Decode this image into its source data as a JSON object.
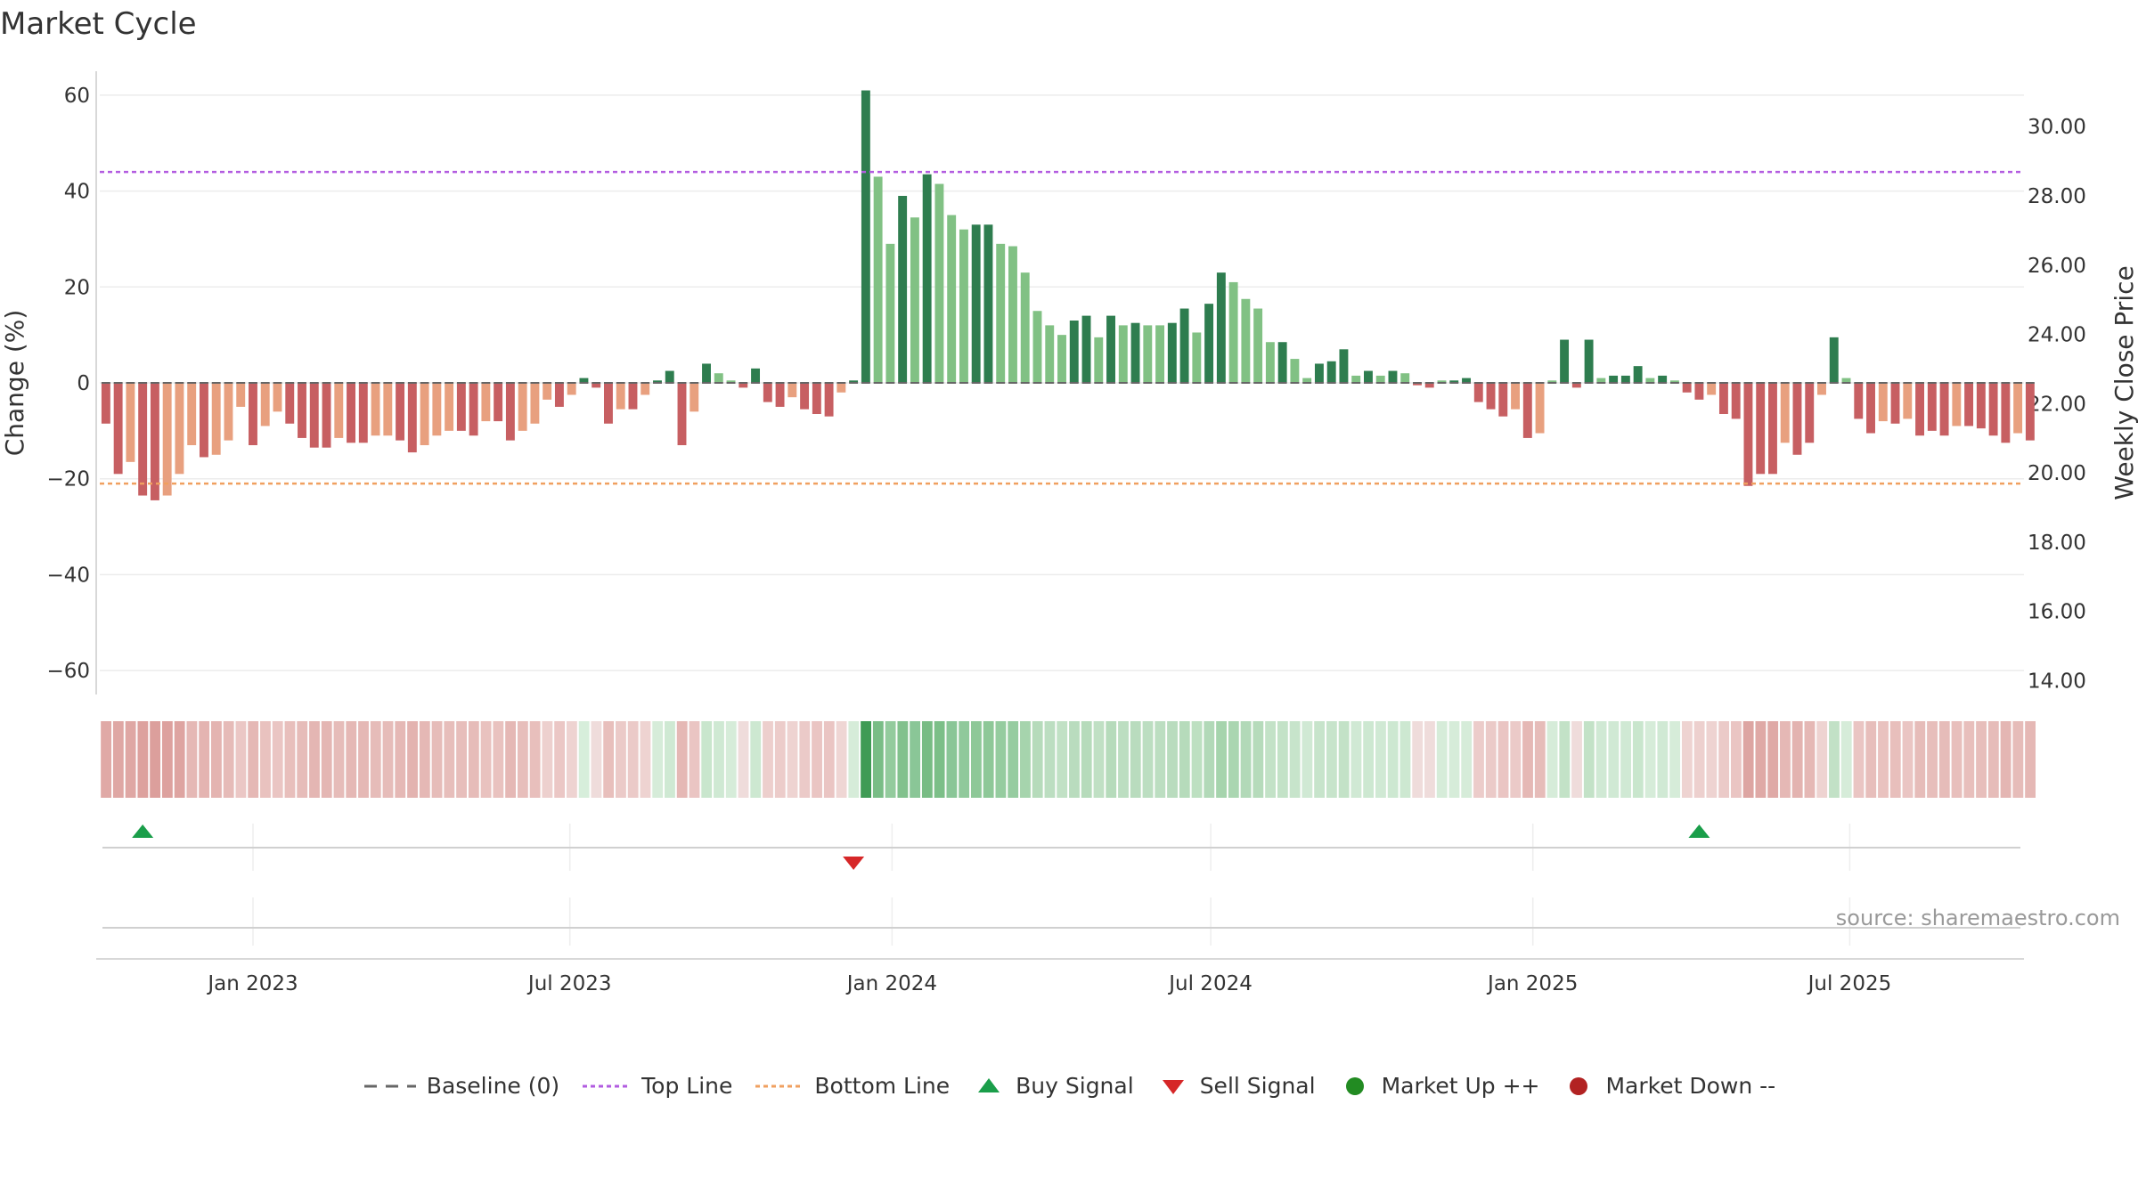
{
  "title": "Market Cycle",
  "source": "source: sharemaestro.com",
  "chart_data": {
    "type": "bar",
    "title": "Market Cycle",
    "ylabel_left": "Change (%)",
    "ylabel_right": "Weekly Close Price",
    "ylim_left": [
      -65,
      65
    ],
    "ylim_right": [
      13.6,
      31.6
    ],
    "yticks_left": [
      60,
      40,
      20,
      0,
      -20,
      -40,
      -60
    ],
    "yticks_left_labels": [
      "60",
      "40",
      "20",
      "0",
      "−20",
      "−40",
      "−60"
    ],
    "yticks_right": [
      30,
      28,
      26,
      24,
      22,
      20,
      18,
      16,
      14
    ],
    "yticks_right_labels": [
      "30.00",
      "28.00",
      "26.00",
      "24.00",
      "22.00",
      "20.00",
      "18.00",
      "16.00",
      "14.00"
    ],
    "start_date": "2022-10-09",
    "weeks": 157,
    "xticks": [
      {
        "label": "Jan 2023",
        "date": "2023-01-01"
      },
      {
        "label": "Jul 2023",
        "date": "2023-07-01"
      },
      {
        "label": "Jan 2024",
        "date": "2024-01-01"
      },
      {
        "label": "Jul 2024",
        "date": "2024-07-01"
      },
      {
        "label": "Jan 2025",
        "date": "2025-01-01"
      },
      {
        "label": "Jul 2025",
        "date": "2025-07-01"
      }
    ],
    "top_line": 44,
    "bottom_line": -21,
    "values": [
      -8.5,
      -19,
      -16.5,
      -23.5,
      -24.5,
      -23.5,
      -19,
      -13,
      -15.5,
      -15,
      -12,
      -5,
      -13,
      -9,
      -6,
      -8.5,
      -11.5,
      -13.5,
      -13.5,
      -11.5,
      -12.5,
      -12.5,
      -11,
      -11,
      -12,
      -14.5,
      -13,
      -11,
      -10,
      -10,
      -11,
      -8,
      -8,
      -12,
      -10,
      -8.5,
      -3.5,
      -5,
      -2.5,
      1,
      -1,
      -8.5,
      -5.5,
      -5.5,
      -2.5,
      0.5,
      2.5,
      -13,
      -6,
      4,
      2,
      0.5,
      -1,
      3,
      -4,
      -5,
      -3,
      -5.5,
      -6.5,
      -7,
      -2,
      0.5,
      61,
      43,
      29,
      39,
      34.5,
      43.5,
      41.5,
      35,
      32,
      33,
      33,
      29,
      28.5,
      23,
      15,
      12,
      10,
      13,
      14,
      9.5,
      14,
      12,
      12.5,
      12,
      12,
      12.5,
      15.5,
      10.5,
      16.5,
      23,
      21,
      17.5,
      15.5,
      8.5,
      8.5,
      5,
      1,
      4,
      4.5,
      7,
      1.5,
      2.5,
      1.5,
      2.5,
      2,
      -0.5,
      -1,
      0.5,
      0.5,
      1,
      -4,
      -5.5,
      -7,
      -5.5,
      -11.5,
      -10.5,
      0.5,
      9,
      -1,
      9,
      1,
      1.5,
      1.5,
      3.5,
      1,
      1.5,
      0.5,
      -2,
      -3.5,
      -2.5,
      -6.5,
      -7.5,
      -21.5,
      -19,
      -19,
      -12.5,
      -15,
      -12.5,
      -2.5,
      9.5,
      1,
      -7.5,
      -10.5,
      -8,
      -8.5,
      -7.5,
      -11,
      -10,
      -11,
      -9,
      -9,
      -9.5,
      -11,
      -12.5,
      -10.5,
      -12
    ],
    "bar_colors": [
      "#c75f62",
      "#c75f62",
      "#e8a07f",
      "#c75f62",
      "#c75f62",
      "#e8a07f",
      "#e8a07f",
      "#e8a07f",
      "#c75f62",
      "#e8a07f",
      "#e8a07f",
      "#e8a07f",
      "#c75f62",
      "#e8a07f",
      "#e8a07f",
      "#c75f62",
      "#c75f62",
      "#c75f62",
      "#c75f62",
      "#e8a07f",
      "#c75f62",
      "#c75f62",
      "#e8a07f",
      "#e8a07f",
      "#c75f62",
      "#c75f62",
      "#e8a07f",
      "#e8a07f",
      "#e8a07f",
      "#c75f62",
      "#c75f62",
      "#e8a07f",
      "#c75f62",
      "#c75f62",
      "#e8a07f",
      "#e8a07f",
      "#e8a07f",
      "#c75f62",
      "#e8a07f",
      "#2e7d4f",
      "#c75f62",
      "#c75f62",
      "#e8a07f",
      "#c75f62",
      "#e8a07f",
      "#2e7d4f",
      "#2e7d4f",
      "#c75f62",
      "#e8a07f",
      "#2e7d4f",
      "#81c184",
      "#81c184",
      "#c75f62",
      "#2e7d4f",
      "#c75f62",
      "#c75f62",
      "#e8a07f",
      "#c75f62",
      "#c75f62",
      "#c75f62",
      "#e8a07f",
      "#2e7d4f",
      "#2e7d4f",
      "#81c184",
      "#81c184",
      "#2e7d4f",
      "#81c184",
      "#2e7d4f",
      "#81c184",
      "#81c184",
      "#81c184",
      "#2e7d4f",
      "#2e7d4f",
      "#81c184",
      "#81c184",
      "#81c184",
      "#81c184",
      "#81c184",
      "#81c184",
      "#2e7d4f",
      "#2e7d4f",
      "#81c184",
      "#2e7d4f",
      "#81c184",
      "#2e7d4f",
      "#81c184",
      "#81c184",
      "#2e7d4f",
      "#2e7d4f",
      "#81c184",
      "#2e7d4f",
      "#2e7d4f",
      "#81c184",
      "#81c184",
      "#81c184",
      "#81c184",
      "#2e7d4f",
      "#81c184",
      "#81c184",
      "#2e7d4f",
      "#2e7d4f",
      "#2e7d4f",
      "#81c184",
      "#2e7d4f",
      "#81c184",
      "#2e7d4f",
      "#81c184",
      "#c75f62",
      "#c75f62",
      "#81c184",
      "#2e7d4f",
      "#2e7d4f",
      "#c75f62",
      "#c75f62",
      "#c75f62",
      "#e8a07f",
      "#c75f62",
      "#e8a07f",
      "#81c184",
      "#2e7d4f",
      "#c75f62",
      "#2e7d4f",
      "#81c184",
      "#2e7d4f",
      "#2e7d4f",
      "#2e7d4f",
      "#81c184",
      "#2e7d4f",
      "#81c184",
      "#c75f62",
      "#c75f62",
      "#e8a07f",
      "#c75f62",
      "#c75f62",
      "#c75f62",
      "#c75f62",
      "#c75f62",
      "#e8a07f",
      "#c75f62",
      "#c75f62",
      "#e8a07f",
      "#2e7d4f",
      "#81c184",
      "#c75f62",
      "#c75f62",
      "#e8a07f",
      "#c75f62",
      "#e8a07f",
      "#c75f62",
      "#c75f62",
      "#c75f62",
      "#e8a07f",
      "#c75f62",
      "#c75f62",
      "#c75f62",
      "#c75f62",
      "#e8a07f",
      "#c75f62"
    ],
    "heatmap_colors": [
      "#e0a9a6",
      "#dfa7a4",
      "#dfa7a4",
      "#dda19e",
      "#dc9f9c",
      "#dda19e",
      "#dea4a1",
      "#e5b8b5",
      "#e4b4b1",
      "#e4b4b1",
      "#e6bbb8",
      "#ebc7c5",
      "#e5b8b5",
      "#e9c2bf",
      "#eac5c3",
      "#e8bfbc",
      "#e6bcb9",
      "#e4b6b3",
      "#e4b6b3",
      "#e6bcb9",
      "#e5b8b5",
      "#e5b8b5",
      "#e6bcb9",
      "#e6bcb9",
      "#e5b8b5",
      "#e3b3b0",
      "#e5b8b5",
      "#e6bcb9",
      "#e7bebb",
      "#e7bebb",
      "#e6bcb9",
      "#e9c2bf",
      "#e9c2bf",
      "#e5b8b5",
      "#e7bebb",
      "#e8bfbc",
      "#edd0ce",
      "#ebc7c5",
      "#eed3d1",
      "#d7eedb",
      "#efdcdb",
      "#e8bfbc",
      "#ebcac8",
      "#ebcac8",
      "#eed3d1",
      "#d6ecd9",
      "#cfe9d3",
      "#e5b8b5",
      "#eac5c3",
      "#c9e6cd",
      "#cfe9d3",
      "#d6ecd9",
      "#efdcdb",
      "#cde8d1",
      "#edcfcd",
      "#ecccca",
      "#eed3d1",
      "#ebcac8",
      "#eac5c3",
      "#eac5c3",
      "#efd6d4",
      "#d6ecd9",
      "#3f9b55",
      "#79bd86",
      "#93cb9d",
      "#82c18d",
      "#8ac697",
      "#78bc84",
      "#7cbf88",
      "#8ac697",
      "#90c99b",
      "#8ec898",
      "#8ec898",
      "#95cc9f",
      "#96cca0",
      "#a6d4ad",
      "#b6dbbb",
      "#bcdec1",
      "#c1e1c5",
      "#b9dcbe",
      "#b6dbbb",
      "#c0e0c4",
      "#b6dbbb",
      "#bcdec1",
      "#b9dcbe",
      "#bcdec1",
      "#bcdec1",
      "#b9dcbe",
      "#b6dbbb",
      "#bde0c1",
      "#b2d9b8",
      "#a6d4ad",
      "#aad6b1",
      "#b2d9b8",
      "#b6dbbb",
      "#c3e2c7",
      "#c3e2c7",
      "#c7e4cb",
      "#d0e9d4",
      "#c7e4cb",
      "#c7e4cb",
      "#c3e2c7",
      "#d0e9d4",
      "#cde8d1",
      "#d0e9d4",
      "#cde8d1",
      "#cde8d1",
      "#efdcdb",
      "#efdcdb",
      "#d6ecd9",
      "#d6ecd9",
      "#d6ecd9",
      "#ecccca",
      "#ebcac8",
      "#eac5c3",
      "#ebcac8",
      "#e5b8b5",
      "#e6bcb9",
      "#d6ecd9",
      "#c3e2c7",
      "#efdcdb",
      "#c3e2c7",
      "#d0e9d4",
      "#d0e9d4",
      "#d0e9d4",
      "#c9e6cd",
      "#d6ecd9",
      "#d0e9d4",
      "#d6ecd9",
      "#eed3d1",
      "#edd0ce",
      "#eed3d1",
      "#ebcac8",
      "#eac5c3",
      "#dda5a2",
      "#dfa9a6",
      "#dfa9a6",
      "#e5b8b5",
      "#e3b3b0",
      "#e5b8b5",
      "#eed3d1",
      "#c2e1c6",
      "#d6ecd9",
      "#eac5c3",
      "#e7bebb",
      "#e9c2bf",
      "#e8bfbc",
      "#eac5c3",
      "#e6bcb9",
      "#e7bebb",
      "#e6bcb9",
      "#e8bfbc",
      "#e8bfbc",
      "#e7bebb",
      "#e6bcb9",
      "#e4b6b3",
      "#e6bcb9",
      "#e5b8b5"
    ],
    "buy_signals": [
      "2022-10-30",
      "2025-04-06"
    ],
    "sell_signals": [
      "2023-12-10"
    ],
    "legend": {
      "baseline": "Baseline (0)",
      "top_line": "Top Line",
      "bottom_line": "Bottom Line",
      "buy": "Buy Signal",
      "sell": "Sell Signal",
      "up": "Market Up ++",
      "down": "Market Down --"
    },
    "colors": {
      "top_line": "#b25ce0",
      "bottom_line": "#f0a060",
      "buy": "#1a9e4a",
      "sell": "#d62728",
      "up": "#228b22",
      "down": "#b22222",
      "baseline": "#666666"
    }
  }
}
